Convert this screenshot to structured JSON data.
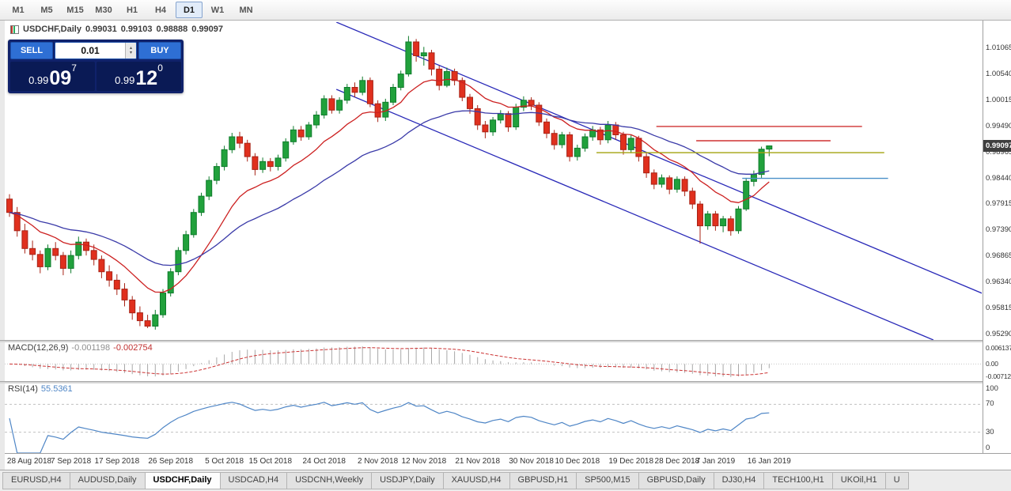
{
  "toolbar": {
    "timeframes": [
      {
        "label": "M1"
      },
      {
        "label": "M5"
      },
      {
        "label": "M15"
      },
      {
        "label": "M30"
      },
      {
        "label": "H1"
      },
      {
        "label": "H4"
      },
      {
        "label": "D1",
        "active": true
      },
      {
        "label": "W1"
      },
      {
        "label": "MN"
      }
    ]
  },
  "chart_header": {
    "symbol_period": "USDCHF,Daily",
    "open": "0.99031",
    "high": "0.99103",
    "low": "0.98888",
    "close": "0.99097"
  },
  "trade_panel": {
    "sell_label": "SELL",
    "buy_label": "BUY",
    "volume": "0.01",
    "sell_price": {
      "prefix": "0.99",
      "big": "09",
      "sup": "7"
    },
    "buy_price": {
      "prefix": "0.99",
      "big": "12",
      "sup": "0"
    }
  },
  "macd_panel": {
    "name": "MACD(12,26,9)",
    "main_value": "-0.001198",
    "signal_value": "-0.002754",
    "axis_top": "0.006137",
    "axis_mid": "0.00",
    "axis_bottom": "-0.0071242"
  },
  "rsi_panel": {
    "name": "RSI(14)",
    "value": "55.5361",
    "axis": [
      "100",
      "70",
      "30",
      "0"
    ],
    "levels": [
      70,
      30
    ]
  },
  "tabs": [
    {
      "label": "EURUSD,H4"
    },
    {
      "label": "AUDUSD,Daily"
    },
    {
      "label": "USDCHF,Daily",
      "active": true
    },
    {
      "label": "USDCAD,H4"
    },
    {
      "label": "USDCNH,Weekly"
    },
    {
      "label": "USDJPY,Daily"
    },
    {
      "label": "XAUUSD,H4"
    },
    {
      "label": "GBPUSD,H1"
    },
    {
      "label": "SP500,M15"
    },
    {
      "label": "GBPUSD,Daily"
    },
    {
      "label": "DJ30,H4"
    },
    {
      "label": "TECH100,H1"
    },
    {
      "label": "UKOil,H1"
    },
    {
      "label": "U"
    }
  ],
  "chart_data": {
    "type": "candlestick",
    "symbol": "USDCHF",
    "timeframe": "Daily",
    "ohlc_current": {
      "open": 0.99031,
      "high": 0.99103,
      "low": 0.98888,
      "close": 0.99097
    },
    "y_axis": {
      "labels": [
        "1.01065",
        "1.00540",
        "1.00015",
        "0.99490",
        "0.98965",
        "0.98440",
        "0.97915",
        "0.97390",
        "0.96865",
        "0.96340",
        "0.95815",
        "0.95290"
      ],
      "current": "0.99097",
      "range": [
        0.9517,
        1.016
      ]
    },
    "x_axis": {
      "labels": [
        {
          "text": "28 Aug 2018",
          "i": 0
        },
        {
          "text": "7 Sep 2018",
          "i": 8
        },
        {
          "text": "17 Sep 2018",
          "i": 14
        },
        {
          "text": "26 Sep 2018",
          "i": 21
        },
        {
          "text": "5 Oct 2018",
          "i": 28
        },
        {
          "text": "15 Oct 2018",
          "i": 34
        },
        {
          "text": "24 Oct 2018",
          "i": 41
        },
        {
          "text": "2 Nov 2018",
          "i": 48
        },
        {
          "text": "12 Nov 2018",
          "i": 54
        },
        {
          "text": "21 Nov 2018",
          "i": 61
        },
        {
          "text": "30 Nov 2018",
          "i": 68
        },
        {
          "text": "10 Dec 2018",
          "i": 74
        },
        {
          "text": "19 Dec 2018",
          "i": 81
        },
        {
          "text": "28 Dec 2018",
          "i": 87
        },
        {
          "text": "7 Jan 2019",
          "i": 92
        },
        {
          "text": "16 Jan 2019",
          "i": 99
        }
      ]
    },
    "candles": [
      [
        0.9802,
        0.9812,
        0.9766,
        0.9775
      ],
      [
        0.9775,
        0.9786,
        0.9726,
        0.9738
      ],
      [
        0.9738,
        0.9752,
        0.9692,
        0.9702
      ],
      [
        0.9702,
        0.9718,
        0.9678,
        0.969
      ],
      [
        0.969,
        0.9698,
        0.9652,
        0.9665
      ],
      [
        0.9665,
        0.971,
        0.9658,
        0.9702
      ],
      [
        0.9702,
        0.9715,
        0.9678,
        0.9688
      ],
      [
        0.9688,
        0.9695,
        0.9648,
        0.9662
      ],
      [
        0.9662,
        0.9698,
        0.9652,
        0.9688
      ],
      [
        0.9688,
        0.9726,
        0.968,
        0.9715
      ],
      [
        0.9715,
        0.9722,
        0.9688,
        0.9698
      ],
      [
        0.9698,
        0.971,
        0.9668,
        0.968
      ],
      [
        0.968,
        0.9688,
        0.9642,
        0.9655
      ],
      [
        0.9655,
        0.9668,
        0.9625,
        0.9638
      ],
      [
        0.9638,
        0.965,
        0.9608,
        0.962
      ],
      [
        0.962,
        0.9632,
        0.9585,
        0.9598
      ],
      [
        0.9598,
        0.9606,
        0.9558,
        0.9572
      ],
      [
        0.9572,
        0.9585,
        0.9545,
        0.9556
      ],
      [
        0.9556,
        0.9568,
        0.9541,
        0.9545
      ],
      [
        0.9545,
        0.9578,
        0.9538,
        0.9568
      ],
      [
        0.9568,
        0.962,
        0.9562,
        0.9612
      ],
      [
        0.9612,
        0.9662,
        0.9605,
        0.9655
      ],
      [
        0.9655,
        0.9705,
        0.9648,
        0.9698
      ],
      [
        0.9698,
        0.9738,
        0.969,
        0.973
      ],
      [
        0.973,
        0.9782,
        0.9724,
        0.9775
      ],
      [
        0.9775,
        0.9815,
        0.9768,
        0.9808
      ],
      [
        0.9808,
        0.9848,
        0.98,
        0.984
      ],
      [
        0.984,
        0.9875,
        0.9832,
        0.9868
      ],
      [
        0.9868,
        0.991,
        0.986,
        0.9902
      ],
      [
        0.9902,
        0.9936,
        0.9895,
        0.9928
      ],
      [
        0.9928,
        0.9938,
        0.9905,
        0.9915
      ],
      [
        0.9915,
        0.9922,
        0.9878,
        0.9888
      ],
      [
        0.9888,
        0.9895,
        0.985,
        0.9862
      ],
      [
        0.9862,
        0.9886,
        0.9855,
        0.9878
      ],
      [
        0.9878,
        0.9885,
        0.9858,
        0.9868
      ],
      [
        0.9868,
        0.9892,
        0.986,
        0.9885
      ],
      [
        0.9885,
        0.9925,
        0.9878,
        0.9918
      ],
      [
        0.9918,
        0.995,
        0.9912,
        0.9942
      ],
      [
        0.9942,
        0.995,
        0.992,
        0.9928
      ],
      [
        0.9928,
        0.9958,
        0.9922,
        0.9952
      ],
      [
        0.9952,
        0.998,
        0.9945,
        0.9972
      ],
      [
        0.9972,
        1.0012,
        0.9965,
        1.0005
      ],
      [
        1.0005,
        1.0012,
        0.9975,
        0.9982
      ],
      [
        0.9982,
        1.0008,
        0.9975,
        1.0002
      ],
      [
        1.0002,
        1.0035,
        0.9995,
        1.0028
      ],
      [
        1.0028,
        1.0038,
        1.0008,
        1.0018
      ],
      [
        1.0018,
        1.005,
        1.0012,
        1.0042
      ],
      [
        1.0042,
        1.0048,
        0.9988,
        0.9995
      ],
      [
        0.9995,
        1.0002,
        0.9958,
        0.9968
      ],
      [
        0.9968,
        1.0005,
        0.996,
        0.9998
      ],
      [
        0.9998,
        1.0035,
        0.9992,
        1.0028
      ],
      [
        1.0028,
        1.0062,
        1.0022,
        1.0055
      ],
      [
        1.0055,
        1.0132,
        1.005,
        1.012
      ],
      [
        1.012,
        1.0126,
        1.008,
        1.0092
      ],
      [
        1.0092,
        1.011,
        1.0072,
        1.0098
      ],
      [
        1.0098,
        1.0104,
        1.0052,
        1.0065
      ],
      [
        1.0065,
        1.0072,
        1.0022,
        1.0032
      ],
      [
        1.0032,
        1.0068,
        1.0028,
        1.006
      ],
      [
        1.006,
        1.0066,
        1.0032,
        1.0042
      ],
      [
        1.0042,
        1.0048,
        1.0,
        1.0008
      ],
      [
        1.0008,
        1.0015,
        0.9975,
        0.9985
      ],
      [
        0.9985,
        0.9992,
        0.9942,
        0.9952
      ],
      [
        0.9952,
        0.996,
        0.9925,
        0.9938
      ],
      [
        0.9938,
        0.9968,
        0.993,
        0.9962
      ],
      [
        0.9962,
        0.9982,
        0.9955,
        0.9975
      ],
      [
        0.9975,
        0.998,
        0.9938,
        0.9948
      ],
      [
        0.9948,
        0.9995,
        0.9942,
        0.9988
      ],
      [
        0.9988,
        1.001,
        0.998,
        1.0002
      ],
      [
        1.0002,
        1.0008,
        0.9982,
        0.9992
      ],
      [
        0.9992,
        0.9998,
        0.995,
        0.9958
      ],
      [
        0.9958,
        0.9965,
        0.9925,
        0.9935
      ],
      [
        0.9935,
        0.9942,
        0.9902,
        0.9912
      ],
      [
        0.9912,
        0.9938,
        0.9905,
        0.9932
      ],
      [
        0.9932,
        0.9938,
        0.9878,
        0.9888
      ],
      [
        0.9888,
        0.9912,
        0.988,
        0.9905
      ],
      [
        0.9905,
        0.9935,
        0.9898,
        0.9928
      ],
      [
        0.9928,
        0.995,
        0.992,
        0.9942
      ],
      [
        0.9942,
        0.9948,
        0.9912,
        0.9922
      ],
      [
        0.9922,
        0.996,
        0.9915,
        0.9952
      ],
      [
        0.9952,
        0.9958,
        0.9922,
        0.9932
      ],
      [
        0.9932,
        0.9938,
        0.9892,
        0.9902
      ],
      [
        0.9902,
        0.9932,
        0.9895,
        0.9925
      ],
      [
        0.9925,
        0.993,
        0.9878,
        0.9888
      ],
      [
        0.9888,
        0.9895,
        0.9845,
        0.9855
      ],
      [
        0.9855,
        0.9862,
        0.9822,
        0.9832
      ],
      [
        0.9832,
        0.9852,
        0.9825,
        0.9845
      ],
      [
        0.9845,
        0.985,
        0.9812,
        0.9822
      ],
      [
        0.9822,
        0.9848,
        0.9815,
        0.9842
      ],
      [
        0.9842,
        0.9848,
        0.9808,
        0.9818
      ],
      [
        0.9818,
        0.9825,
        0.9782,
        0.9792
      ],
      [
        0.9792,
        0.9798,
        0.9712,
        0.9748
      ],
      [
        0.9748,
        0.9778,
        0.974,
        0.9772
      ],
      [
        0.9772,
        0.9778,
        0.9738,
        0.9748
      ],
      [
        0.9748,
        0.9768,
        0.9735,
        0.9762
      ],
      [
        0.9762,
        0.9768,
        0.9728,
        0.9738
      ],
      [
        0.9738,
        0.9788,
        0.9732,
        0.9782
      ],
      [
        0.9782,
        0.9845,
        0.9778,
        0.9838
      ],
      [
        0.9838,
        0.986,
        0.9828,
        0.9852
      ],
      [
        0.9852,
        0.9908,
        0.9845,
        0.9903
      ],
      [
        0.99031,
        0.99103,
        0.98888,
        0.99097
      ]
    ],
    "moving_averages": [
      {
        "type": "ema",
        "period": 12,
        "color_key": "ma_fast"
      },
      {
        "type": "ema",
        "period": 30,
        "color_key": "ma_slow"
      }
    ],
    "trendlines": [
      {
        "i1": 42.6,
        "p1": 1.016,
        "i2": 130.5,
        "p2": 0.9587
      },
      {
        "i1": 42.6,
        "p1": 1.0024,
        "i2": 120.4,
        "p2": 0.9517
      }
    ],
    "hlines": [
      {
        "price": 0.9949,
        "i1": 84.3,
        "i2": 111.1,
        "color": "#cf3232"
      },
      {
        "price": 0.992,
        "i1": 89.5,
        "i2": 107.0,
        "color": "#cf3232"
      },
      {
        "price": 0.9896,
        "i1": 76.5,
        "i2": 114.0,
        "color": "#a3a30f"
      },
      {
        "price": 0.9844,
        "i1": 95.5,
        "i2": 114.5,
        "color": "#4a90c8"
      }
    ],
    "indicators": {
      "macd": {
        "fast": 12,
        "slow": 26,
        "signal": 9
      },
      "rsi": {
        "period": 14
      }
    },
    "colors": {
      "up": "#21a13c",
      "up_border": "#0f7c2c",
      "down": "#e0301e",
      "down_border": "#a82417",
      "ma_fast": "#cc2020",
      "ma_slow": "#3a3aa8",
      "trendline": "#2929b8",
      "macd_hist": "#a8a8a8",
      "macd_signal": "#cc3333",
      "rsi": "#4f86c6"
    }
  }
}
